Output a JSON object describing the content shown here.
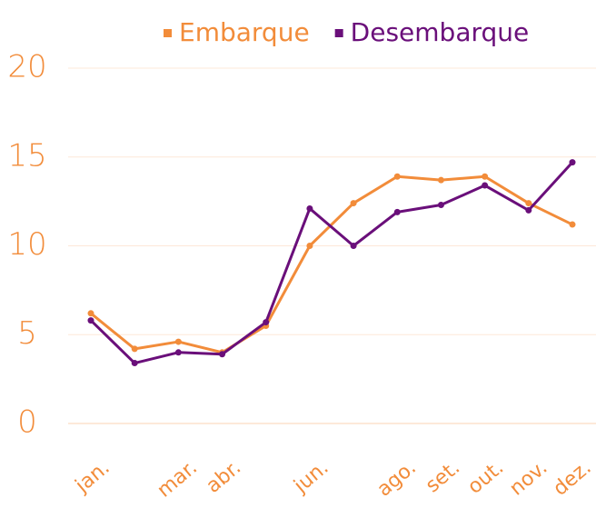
{
  "chart_data": {
    "type": "line",
    "categories": [
      "jan.",
      null,
      "mar.",
      "abr.",
      null,
      "jun.",
      null,
      "ago.",
      "set.",
      "out.",
      "nov.",
      "dez."
    ],
    "series": [
      {
        "name": "Embarque",
        "color": "#f28c3a",
        "values": [
          6.2,
          4.2,
          4.6,
          4.0,
          5.5,
          10.0,
          12.4,
          13.9,
          13.7,
          13.9,
          12.4,
          11.2
        ]
      },
      {
        "name": "Desembarque",
        "color": "#6a0f7a",
        "values": [
          5.8,
          3.4,
          4.0,
          3.9,
          5.7,
          12.1,
          10.0,
          11.9,
          12.3,
          13.4,
          12.0,
          14.7
        ]
      }
    ],
    "ylim": [
      0,
      20
    ],
    "yticks": [
      0,
      5,
      10,
      15,
      20
    ],
    "grid": true,
    "legend": "top"
  }
}
